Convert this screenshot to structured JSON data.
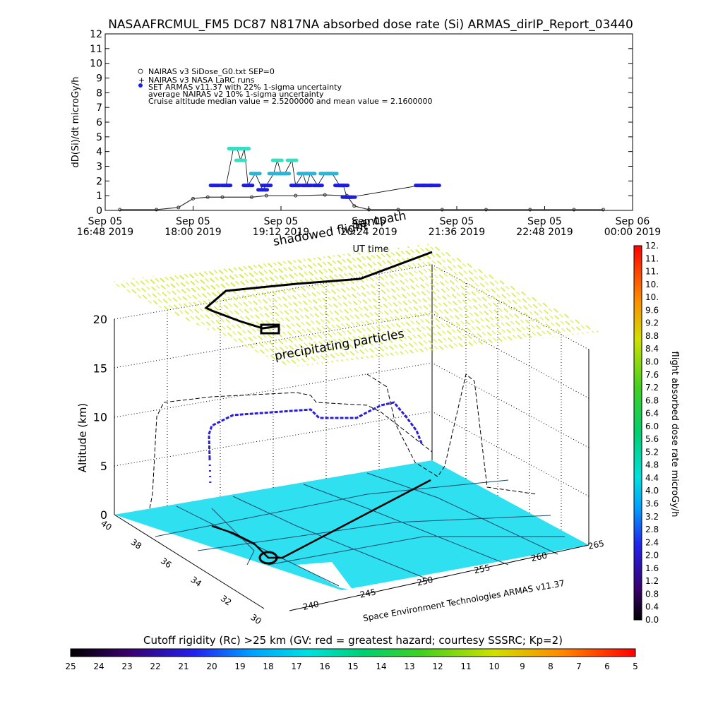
{
  "page": {
    "title": "NASAAFRCMUL_FM5 DC87 N817NA absorbed dose rate (Si) ARMAS_dirIP_Report_03440"
  },
  "chart_data": [
    {
      "type": "scatter",
      "title": "NASAAFRCMUL_FM5 DC87 N817NA absorbed dose rate (Si) ARMAS_dirIP_Report_03440",
      "xlabel": "UT time",
      "ylabel": "dD(Si)/dt microGy/h",
      "ylim": [
        0,
        12
      ],
      "yticks": [
        "0",
        "1",
        "2",
        "3",
        "4",
        "5",
        "6",
        "7",
        "8",
        "9",
        "10",
        "11",
        "12"
      ],
      "xticks": [
        {
          "line1": "Sep 05",
          "line2": "16:48 2019"
        },
        {
          "line1": "Sep 05",
          "line2": "18:00 2019"
        },
        {
          "line1": "Sep 05",
          "line2": "19:12 2019"
        },
        {
          "line1": "Sep 05",
          "line2": "20:24 2019"
        },
        {
          "line1": "Sep 05",
          "line2": "21:36 2019"
        },
        {
          "line1": "Sep 05",
          "line2": "22:48 2019"
        },
        {
          "line1": "Sep 06",
          "line2": "00:00 2019"
        }
      ],
      "x_unit_note": "x values are hours UT on Sep 05 2019 (16.8 = 16:48, 24 = Sep 06 00:00)",
      "xlim": [
        16.8,
        24.0
      ],
      "legend": [
        "NAIRAS v3 SiDose_G0.txt SEP=0",
        "NAIRAS v3 NASA LaRC runs",
        "SET ARMAS v11.37 with 22% 1-sigma uncertainty",
        "average NAIRAS v2 10% 1-sigma uncertainty",
        "Cruise altitude median value = 2.5200000 and mean value = 2.1600000"
      ],
      "series": [
        {
          "name": "NAIRAS v3 SiDose_G0.txt SEP=0",
          "x": [
            17.0,
            17.5,
            17.8,
            18.0,
            18.2,
            18.4,
            18.8,
            19.0,
            19.4,
            19.8,
            20.1,
            20.2,
            20.4,
            20.8,
            21.4,
            22.0,
            22.6,
            23.2,
            23.6
          ],
          "y": [
            0.05,
            0.05,
            0.2,
            0.8,
            0.9,
            0.9,
            0.9,
            1.0,
            1.0,
            1.05,
            1.0,
            0.3,
            0.05,
            0.05,
            0.05,
            0.05,
            0.05,
            0.05,
            0.05
          ]
        },
        {
          "name": "SET ARMAS v11.37 with 22% 1-sigma uncertainty",
          "x": [
            18.3,
            18.45,
            18.55,
            18.6,
            18.65,
            18.7,
            18.75,
            18.85,
            18.95,
            19.0,
            19.1,
            19.15,
            19.2,
            19.25,
            19.35,
            19.4,
            19.5,
            19.55,
            19.6,
            19.7,
            19.8,
            19.9,
            20.0,
            20.05,
            20.1,
            20.15,
            21.1,
            21.2,
            21.3
          ],
          "y": [
            1.7,
            1.7,
            4.2,
            4.2,
            3.4,
            4.2,
            1.7,
            2.5,
            1.4,
            1.7,
            2.5,
            3.4,
            2.5,
            2.5,
            3.4,
            1.7,
            2.5,
            1.7,
            2.5,
            1.7,
            2.5,
            2.5,
            1.7,
            1.7,
            0.9,
            0.9,
            1.7,
            1.7,
            1.7
          ]
        }
      ]
    },
    {
      "type": "scatter",
      "title": "",
      "zlabel": "Altitude (km)",
      "zticks": [
        "0",
        "5",
        "10",
        "15",
        "20"
      ],
      "zlim": [
        0,
        20
      ],
      "lat_ticks": [
        "30",
        "32",
        "34",
        "36",
        "38",
        "40"
      ],
      "lon_ticks": [
        "240",
        "245",
        "250",
        "255",
        "260",
        "265"
      ],
      "annotations": [
        "precipitating particles",
        "shadowed flight",
        "Sentpath"
      ],
      "footer_credit": "Space Environment Technologies ARMAS v11.37",
      "colorbar": {
        "label": "flight absorbed dose rate microGy/h",
        "ticks": [
          "0.0",
          "0.4",
          "0.8",
          "1.2",
          "1.6",
          "2.0",
          "2.4",
          "2.8",
          "3.2",
          "3.6",
          "4.0",
          "4.4",
          "4.8",
          "5.2",
          "5.6",
          "6.0",
          "6.4",
          "6.8",
          "7.2",
          "7.6",
          "8.0",
          "8.4",
          "8.8",
          "9.2",
          "9.6",
          "10.",
          "10.",
          "11.",
          "11.",
          "12."
        ]
      },
      "flight_track": {
        "lon": [
          242,
          242.3,
          243,
          245,
          248,
          251,
          254,
          256.5,
          258
        ],
        "lat": [
          35.5,
          36.2,
          37.4,
          38.6,
          38.9,
          38.8,
          38.5,
          37.5,
          36.0
        ],
        "alt_km": [
          0.5,
          5,
          9.8,
          11,
          11,
          10.9,
          10,
          10.8,
          12
        ]
      }
    }
  ],
  "rigidity_bar": {
    "label": "Cutoff rigidity (Rc) >25 km (GV: red = greatest hazard; courtesy SSSRC; Kp=2)",
    "ticks": [
      "25",
      "24",
      "23",
      "22",
      "21",
      "20",
      "19",
      "18",
      "17",
      "16",
      "15",
      "14",
      "13",
      "12",
      "11",
      "10",
      "9",
      "8",
      "7",
      "6",
      "5"
    ]
  },
  "colors": {
    "nairas_v3": "#333333",
    "armas_low": "#1d1ddd",
    "armas_mid": "#27b6d8",
    "armas_high": "#33e0c0",
    "ground_map": "#2fe0f0",
    "rc_field": "#c8ec2e",
    "track": "#000000"
  }
}
